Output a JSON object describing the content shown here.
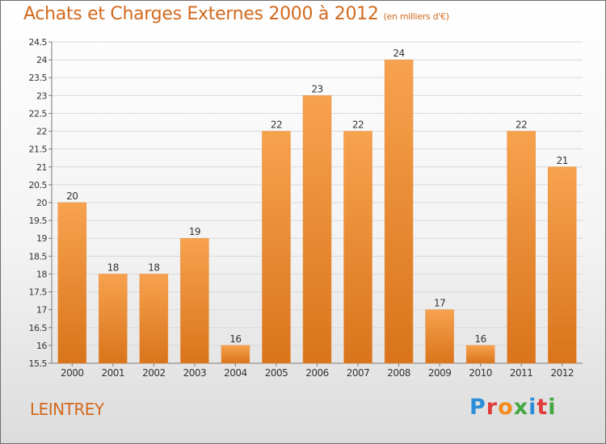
{
  "page": {
    "title": "Achats et Charges Externes 2000 à 2012",
    "unit": "(en milliers d'€)",
    "commune": "LEINTREY",
    "logo": [
      "P",
      "r",
      "o",
      "x",
      "i",
      "t",
      "i"
    ],
    "logo_colors": [
      "#2a8fd8",
      "#e23b3b",
      "#f28c1c",
      "#43a743",
      "#2a8fd8",
      "#e23b3b",
      "#43a743"
    ]
  },
  "chart_data": {
    "type": "bar",
    "categories": [
      "2000",
      "2001",
      "2002",
      "2003",
      "2004",
      "2005",
      "2006",
      "2007",
      "2008",
      "2009",
      "2010",
      "2011",
      "2012"
    ],
    "values": [
      20,
      18,
      18,
      19,
      16,
      22,
      23,
      22,
      24,
      17,
      16,
      22,
      21
    ],
    "value_labels": [
      "20",
      "18",
      "18",
      "19",
      "16",
      "22",
      "23",
      "22",
      "24",
      "17",
      "16",
      "22",
      "21"
    ],
    "yticks": [
      "15.5",
      "16",
      "16.5",
      "17",
      "17.5",
      "18",
      "18.5",
      "19",
      "19.5",
      "20",
      "20.5",
      "21",
      "21.5",
      "22",
      "22.5",
      "23",
      "23.5",
      "24",
      "24.5"
    ],
    "ylim": [
      15.5,
      24.5
    ],
    "grid": true,
    "bar_color_top": "#f7a24e",
    "bar_color_bottom": "#d9741b"
  }
}
